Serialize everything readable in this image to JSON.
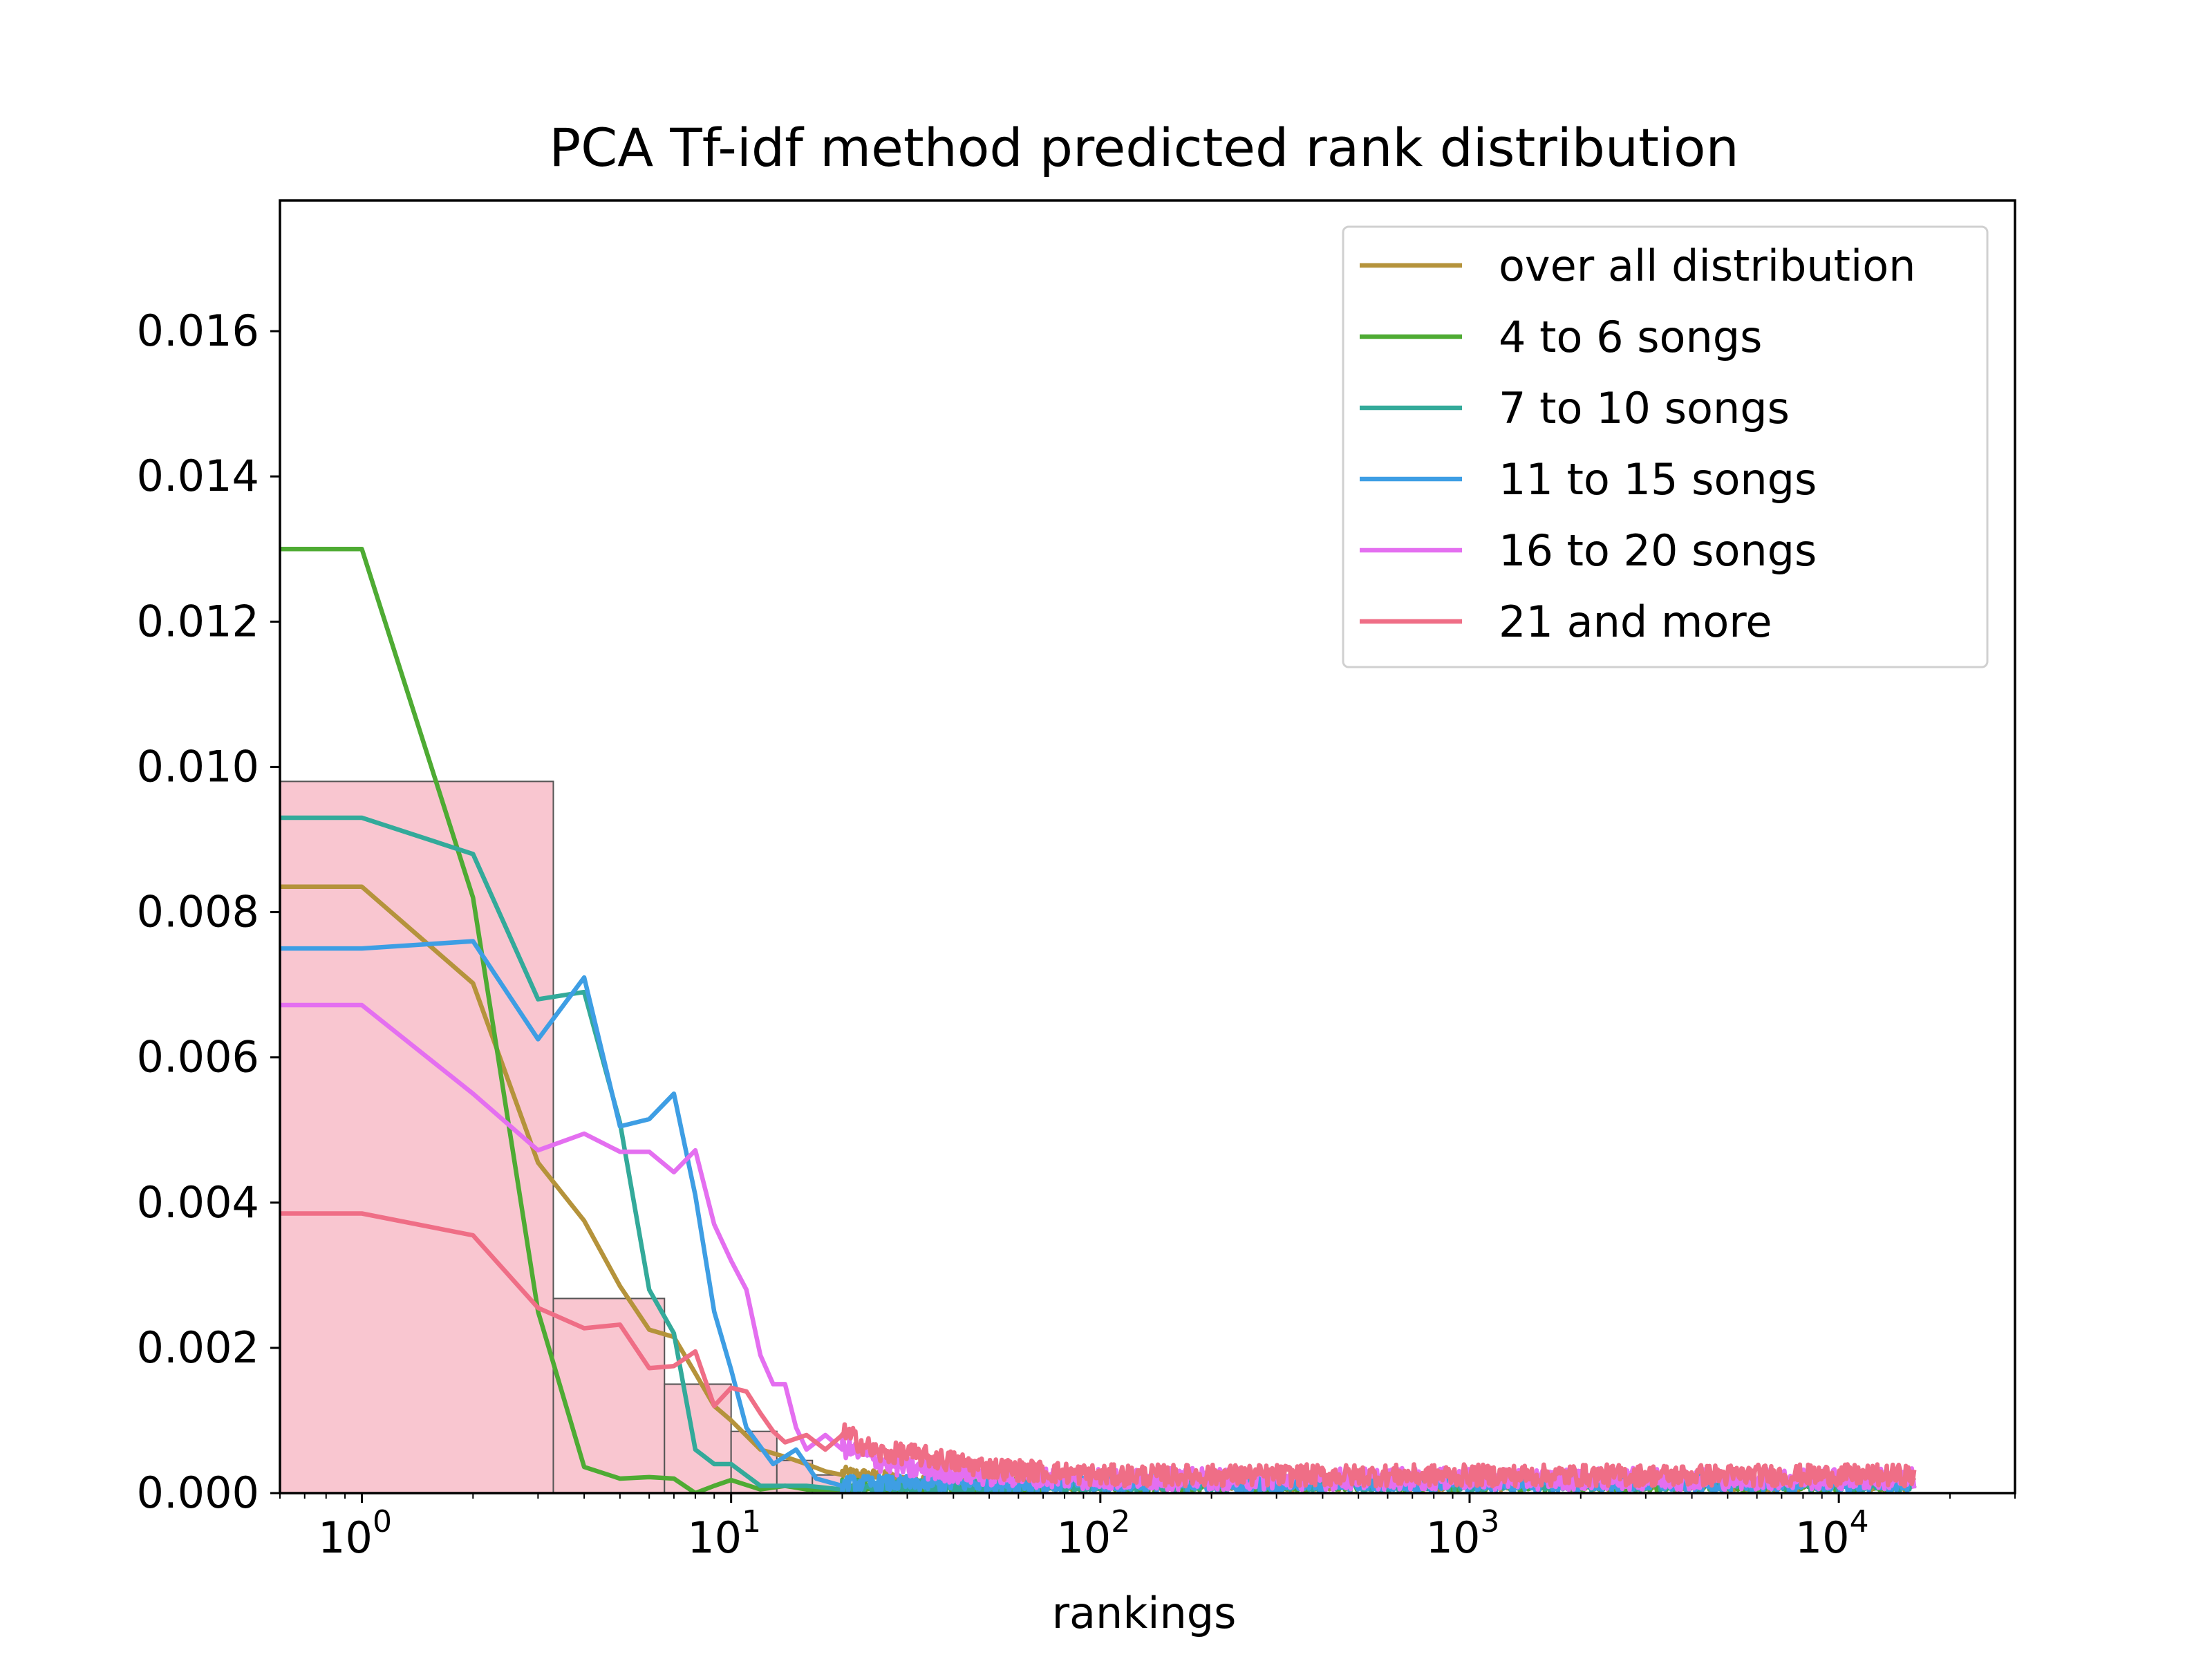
{
  "chart_data": {
    "type": "line",
    "title": "PCA Tf-idf method predicted rank distribution",
    "xlabel": "rankings",
    "ylabel": "",
    "xscale": "log",
    "xlim": [
      0.6,
      30000
    ],
    "ylim": [
      0,
      0.0178
    ],
    "yticks": [
      "0.000",
      "0.002",
      "0.004",
      "0.006",
      "0.008",
      "0.010",
      "0.012",
      "0.014",
      "0.016"
    ],
    "xticks": [
      {
        "base": "10",
        "exp": "0",
        "value": 1
      },
      {
        "base": "10",
        "exp": "1",
        "value": 10
      },
      {
        "base": "10",
        "exp": "2",
        "value": 100
      },
      {
        "base": "10",
        "exp": "3",
        "value": 1000
      },
      {
        "base": "10",
        "exp": "4",
        "value": 10000
      }
    ],
    "grid": false,
    "legend_position": "top-right",
    "histogram": {
      "color": "#f9c6d0",
      "edge_color": "#555555",
      "bins": [
        {
          "x0": 0.6,
          "x1": 3.3,
          "value": 0.0098
        },
        {
          "x0": 3.3,
          "x1": 6.6,
          "value": 0.00268
        },
        {
          "x0": 6.6,
          "x1": 10.0,
          "value": 0.0015
        },
        {
          "x0": 10.0,
          "x1": 13.3,
          "value": 0.00085
        },
        {
          "x0": 13.3,
          "x1": 16.6,
          "value": 0.00045
        },
        {
          "x0": 16.6,
          "x1": 20.0,
          "value": 0.00025
        }
      ]
    },
    "series": [
      {
        "name": "over all distribution",
        "color": "#b5933b",
        "x": [
          0.6,
          1,
          2,
          3,
          4,
          5,
          6,
          7,
          8,
          9,
          10,
          12,
          14,
          16,
          18,
          20,
          25,
          30,
          40,
          50,
          70,
          100,
          16000
        ],
        "y": [
          0.00835,
          0.00835,
          0.00702,
          0.00455,
          0.00375,
          0.00285,
          0.00225,
          0.00215,
          0.00165,
          0.0012,
          0.001,
          0.0006,
          0.0005,
          0.0004,
          0.0003,
          0.00025,
          0.0002,
          0.00015,
          0.00012,
          0.0001,
          0.0001,
          0.0001,
          0.0001
        ],
        "noise": 0.00018
      },
      {
        "name": "4 to 6 songs",
        "color": "#4eab33",
        "x": [
          0.6,
          1,
          2,
          3,
          4,
          5,
          6,
          7,
          8,
          9,
          10,
          12,
          14,
          16,
          20,
          30,
          50,
          100,
          16000
        ],
        "y": [
          0.013,
          0.013,
          0.0082,
          0.0025,
          0.00036,
          0.0002,
          0.00022,
          0.0002,
          0.0,
          0.0001,
          0.00018,
          5e-05,
          0.0001,
          5e-05,
          5e-05,
          5e-05,
          5e-05,
          0.0001,
          0.0001
        ],
        "noise": 0.00022
      },
      {
        "name": "7 to 10 songs",
        "color": "#33aa9a",
        "x": [
          0.6,
          1,
          2,
          3,
          4,
          5,
          6,
          7,
          8,
          9,
          10,
          12,
          14,
          16,
          20,
          30,
          50,
          100,
          16000
        ],
        "y": [
          0.0093,
          0.0093,
          0.0088,
          0.0068,
          0.0069,
          0.0051,
          0.0028,
          0.0022,
          0.0006,
          0.0004,
          0.0004,
          0.0001,
          0.0001,
          0.0001,
          5e-05,
          5e-05,
          5e-05,
          0.0001,
          0.0001
        ],
        "noise": 0.0002
      },
      {
        "name": "11 to 15 songs",
        "color": "#3e9ee4",
        "x": [
          0.6,
          1,
          2,
          3,
          4,
          5,
          6,
          7,
          8,
          9,
          10,
          11,
          13,
          15,
          17,
          20,
          30,
          50,
          100,
          16000
        ],
        "y": [
          0.0075,
          0.0075,
          0.0076,
          0.00625,
          0.0071,
          0.00505,
          0.00515,
          0.0055,
          0.0041,
          0.0025,
          0.0017,
          0.0009,
          0.0004,
          0.0006,
          0.0002,
          0.0001,
          0.0001,
          0.0001,
          0.0001,
          0.0001
        ],
        "noise": 0.00022
      },
      {
        "name": "16 to 20 songs",
        "color": "#e46ff0",
        "x": [
          0.6,
          1,
          2,
          3,
          4,
          5,
          6,
          7,
          8,
          9,
          10,
          11,
          12,
          13,
          14,
          15,
          16,
          18,
          20,
          25,
          30,
          50,
          100,
          16000
        ],
        "y": [
          0.00672,
          0.00672,
          0.0055,
          0.00472,
          0.00495,
          0.0047,
          0.0047,
          0.00442,
          0.00472,
          0.0037,
          0.0032,
          0.0028,
          0.0019,
          0.0015,
          0.0015,
          0.0009,
          0.0006,
          0.0008,
          0.0006,
          0.0004,
          0.0003,
          0.0002,
          0.00015,
          0.00015
        ],
        "noise": 0.0003
      },
      {
        "name": "21 and more",
        "color": "#ef6e86",
        "x": [
          0.6,
          1,
          2,
          3,
          4,
          5,
          6,
          7,
          8,
          9,
          10,
          11,
          12,
          13,
          14,
          16,
          18,
          20,
          25,
          30,
          50,
          100,
          16000
        ],
        "y": [
          0.00385,
          0.00385,
          0.00355,
          0.00255,
          0.00227,
          0.00232,
          0.00172,
          0.00175,
          0.00195,
          0.0012,
          0.00145,
          0.0014,
          0.0011,
          0.00085,
          0.0007,
          0.0008,
          0.0006,
          0.0008,
          0.0005,
          0.0005,
          0.0003,
          0.0002,
          0.0002
        ],
        "noise": 0.0003
      }
    ]
  }
}
